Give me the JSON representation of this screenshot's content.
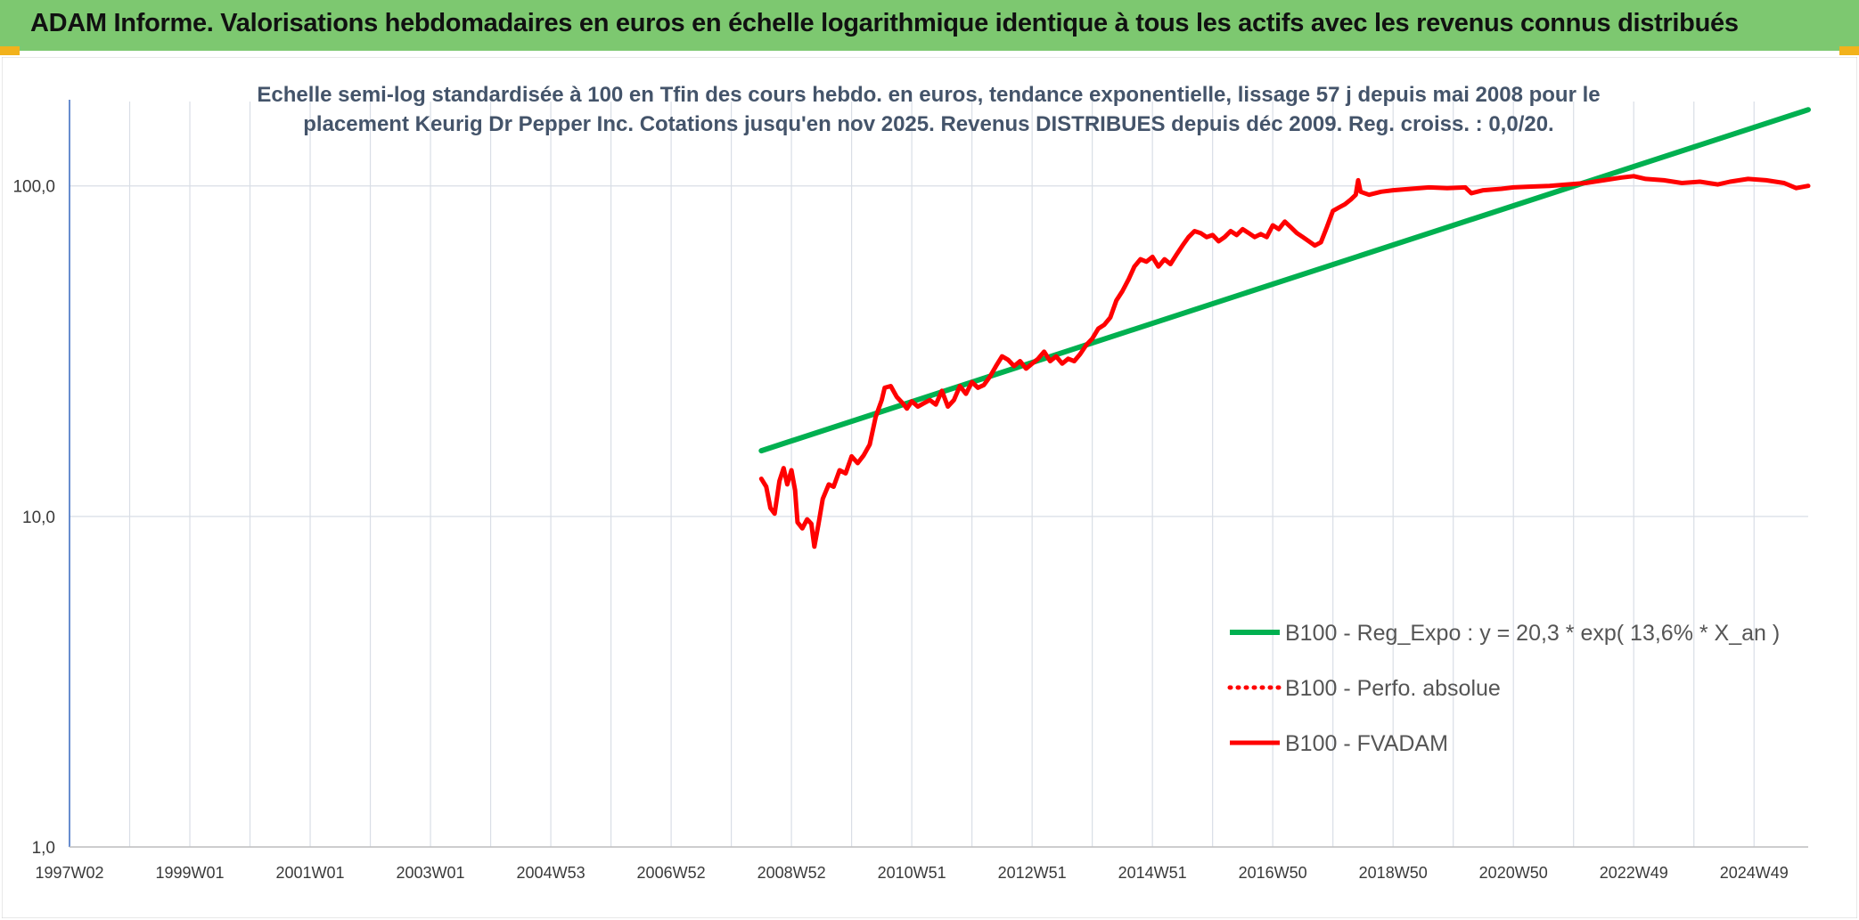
{
  "header": {
    "title": "ADAM Informe. Valorisations hebdomadaires en euros en échelle logarithmique identique à tous les actifs avec les revenus connus distribués"
  },
  "colors": {
    "header_bg": "#7dc870",
    "corner_marks": "#f2b21c",
    "reg_expo": "#00b050",
    "fvadam": "#ff0000",
    "grid": "#d9dee6",
    "y_axis": "#4472c4"
  },
  "chart_data": {
    "type": "line",
    "subtitle_lines": [
      "Echelle semi-log standardisée à 100 en Tfin des cours hebdo. en euros, tendance exponentielle, lissage 57 j depuis mai 2008 pour le",
      "placement Keurig Dr Pepper Inc. Cotations jusqu'en nov 2025. Revenus DISTRIBUES depuis déc 2009. Reg. croiss. : 0,0/20."
    ],
    "y_scale": "log",
    "ylim": [
      1,
      100
    ],
    "y_ticks": [
      {
        "value": 100,
        "label": "100,0"
      },
      {
        "value": 10,
        "label": "10,0"
      },
      {
        "value": 1,
        "label": "1,0"
      }
    ],
    "xlim": [
      1997.0,
      2025.9
    ],
    "x_ticks": [
      {
        "year": 1997.0,
        "label": "1997W02"
      },
      {
        "year": 1999.0,
        "label": "1999W01"
      },
      {
        "year": 2001.0,
        "label": "2001W01"
      },
      {
        "year": 2003.0,
        "label": "2003W01"
      },
      {
        "year": 2005.0,
        "label": "2004W53"
      },
      {
        "year": 2007.0,
        "label": "2006W52"
      },
      {
        "year": 2009.0,
        "label": "2008W52"
      },
      {
        "year": 2011.0,
        "label": "2010W51"
      },
      {
        "year": 2013.0,
        "label": "2012W51"
      },
      {
        "year": 2015.0,
        "label": "2014W51"
      },
      {
        "year": 2017.0,
        "label": "2016W50"
      },
      {
        "year": 2019.0,
        "label": "2018W50"
      },
      {
        "year": 2021.0,
        "label": "2020W50"
      },
      {
        "year": 2023.0,
        "label": "2022W49"
      },
      {
        "year": 2025.0,
        "label": "2024W49"
      }
    ],
    "legend_placement": "bottom-right",
    "series": [
      {
        "name": "B100 - Reg_Expo : y = 20,3 * exp( 13,6% *  X_an )",
        "style": "solid",
        "color": "#00b050",
        "points": [
          [
            2008.5,
            15.8
          ],
          [
            2025.9,
            170
          ]
        ]
      },
      {
        "name": "B100 - Perfo. absolue",
        "style": "dotted",
        "color": "#ff0000",
        "points": []
      },
      {
        "name": "B100 - FVADAM",
        "style": "solid",
        "color": "#ff0000",
        "points": [
          [
            2008.5,
            13.0
          ],
          [
            2008.58,
            12.3
          ],
          [
            2008.65,
            10.6
          ],
          [
            2008.72,
            10.2
          ],
          [
            2008.8,
            12.8
          ],
          [
            2008.87,
            14.0
          ],
          [
            2008.93,
            12.5
          ],
          [
            2009.0,
            13.8
          ],
          [
            2009.06,
            12.0
          ],
          [
            2009.1,
            9.6
          ],
          [
            2009.18,
            9.2
          ],
          [
            2009.26,
            9.8
          ],
          [
            2009.33,
            9.5
          ],
          [
            2009.38,
            8.1
          ],
          [
            2009.45,
            9.5
          ],
          [
            2009.52,
            11.3
          ],
          [
            2009.62,
            12.5
          ],
          [
            2009.7,
            12.3
          ],
          [
            2009.8,
            13.8
          ],
          [
            2009.9,
            13.5
          ],
          [
            2010.0,
            15.2
          ],
          [
            2010.1,
            14.5
          ],
          [
            2010.2,
            15.3
          ],
          [
            2010.3,
            16.5
          ],
          [
            2010.4,
            20.0
          ],
          [
            2010.5,
            22.5
          ],
          [
            2010.55,
            24.5
          ],
          [
            2010.65,
            24.8
          ],
          [
            2010.75,
            23.0
          ],
          [
            2010.85,
            22.0
          ],
          [
            2010.92,
            21.2
          ],
          [
            2011.0,
            22.3
          ],
          [
            2011.1,
            21.5
          ],
          [
            2011.2,
            22.0
          ],
          [
            2011.3,
            22.5
          ],
          [
            2011.4,
            21.8
          ],
          [
            2011.5,
            24.0
          ],
          [
            2011.6,
            21.5
          ],
          [
            2011.7,
            22.5
          ],
          [
            2011.8,
            24.8
          ],
          [
            2011.9,
            23.5
          ],
          [
            2012.0,
            25.5
          ],
          [
            2012.1,
            24.5
          ],
          [
            2012.2,
            25.0
          ],
          [
            2012.3,
            26.5
          ],
          [
            2012.4,
            28.5
          ],
          [
            2012.5,
            30.5
          ],
          [
            2012.6,
            29.8
          ],
          [
            2012.7,
            28.5
          ],
          [
            2012.8,
            29.5
          ],
          [
            2012.9,
            28.0
          ],
          [
            2013.0,
            29.0
          ],
          [
            2013.1,
            30.0
          ],
          [
            2013.2,
            31.5
          ],
          [
            2013.3,
            29.5
          ],
          [
            2013.4,
            30.5
          ],
          [
            2013.5,
            29.0
          ],
          [
            2013.6,
            30.0
          ],
          [
            2013.7,
            29.5
          ],
          [
            2013.8,
            31.0
          ],
          [
            2013.9,
            33.0
          ],
          [
            2014.0,
            34.5
          ],
          [
            2014.1,
            37.0
          ],
          [
            2014.2,
            38.0
          ],
          [
            2014.3,
            40.0
          ],
          [
            2014.4,
            45.0
          ],
          [
            2014.5,
            48.0
          ],
          [
            2014.6,
            52.0
          ],
          [
            2014.7,
            57.0
          ],
          [
            2014.8,
            60.0
          ],
          [
            2014.9,
            59.0
          ],
          [
            2015.0,
            61.0
          ],
          [
            2015.1,
            57.0
          ],
          [
            2015.2,
            60.0
          ],
          [
            2015.3,
            58.0
          ],
          [
            2015.4,
            62.0
          ],
          [
            2015.5,
            66.0
          ],
          [
            2015.6,
            70.0
          ],
          [
            2015.7,
            73.0
          ],
          [
            2015.8,
            72.0
          ],
          [
            2015.9,
            70.0
          ],
          [
            2016.0,
            71.0
          ],
          [
            2016.1,
            68.0
          ],
          [
            2016.2,
            70.0
          ],
          [
            2016.3,
            73.0
          ],
          [
            2016.4,
            71.0
          ],
          [
            2016.5,
            74.0
          ],
          [
            2016.6,
            72.0
          ],
          [
            2016.7,
            70.0
          ],
          [
            2016.8,
            71.5
          ],
          [
            2016.9,
            70.0
          ],
          [
            2017.0,
            76.0
          ],
          [
            2017.1,
            74.0
          ],
          [
            2017.2,
            78.0
          ],
          [
            2017.3,
            75.0
          ],
          [
            2017.4,
            72.0
          ],
          [
            2017.5,
            70.0
          ],
          [
            2017.6,
            68.0
          ],
          [
            2017.7,
            66.0
          ],
          [
            2017.8,
            67.5
          ],
          [
            2017.9,
            75.0
          ],
          [
            2018.0,
            84.0
          ],
          [
            2018.1,
            86.0
          ],
          [
            2018.2,
            88.0
          ],
          [
            2018.3,
            91.0
          ],
          [
            2018.38,
            94.0
          ],
          [
            2018.42,
            104.0
          ],
          [
            2018.46,
            96.0
          ],
          [
            2018.6,
            94.0
          ],
          [
            2018.8,
            96.0
          ],
          [
            2019.0,
            97.0
          ],
          [
            2019.3,
            98.0
          ],
          [
            2019.6,
            99.0
          ],
          [
            2019.9,
            98.5
          ],
          [
            2020.2,
            99.0
          ],
          [
            2020.3,
            95.0
          ],
          [
            2020.5,
            97.0
          ],
          [
            2020.8,
            98.0
          ],
          [
            2021.0,
            99.0
          ],
          [
            2021.3,
            99.5
          ],
          [
            2021.6,
            100.0
          ],
          [
            2021.9,
            101.0
          ],
          [
            2022.2,
            102.0
          ],
          [
            2022.5,
            104.0
          ],
          [
            2022.8,
            106.0
          ],
          [
            2023.0,
            107.0
          ],
          [
            2023.2,
            105.0
          ],
          [
            2023.5,
            104.0
          ],
          [
            2023.8,
            102.0
          ],
          [
            2024.1,
            103.0
          ],
          [
            2024.4,
            101.0
          ],
          [
            2024.6,
            103.0
          ],
          [
            2024.9,
            105.0
          ],
          [
            2025.2,
            104.0
          ],
          [
            2025.5,
            102.0
          ],
          [
            2025.7,
            98.5
          ],
          [
            2025.9,
            100.0
          ]
        ]
      }
    ]
  }
}
